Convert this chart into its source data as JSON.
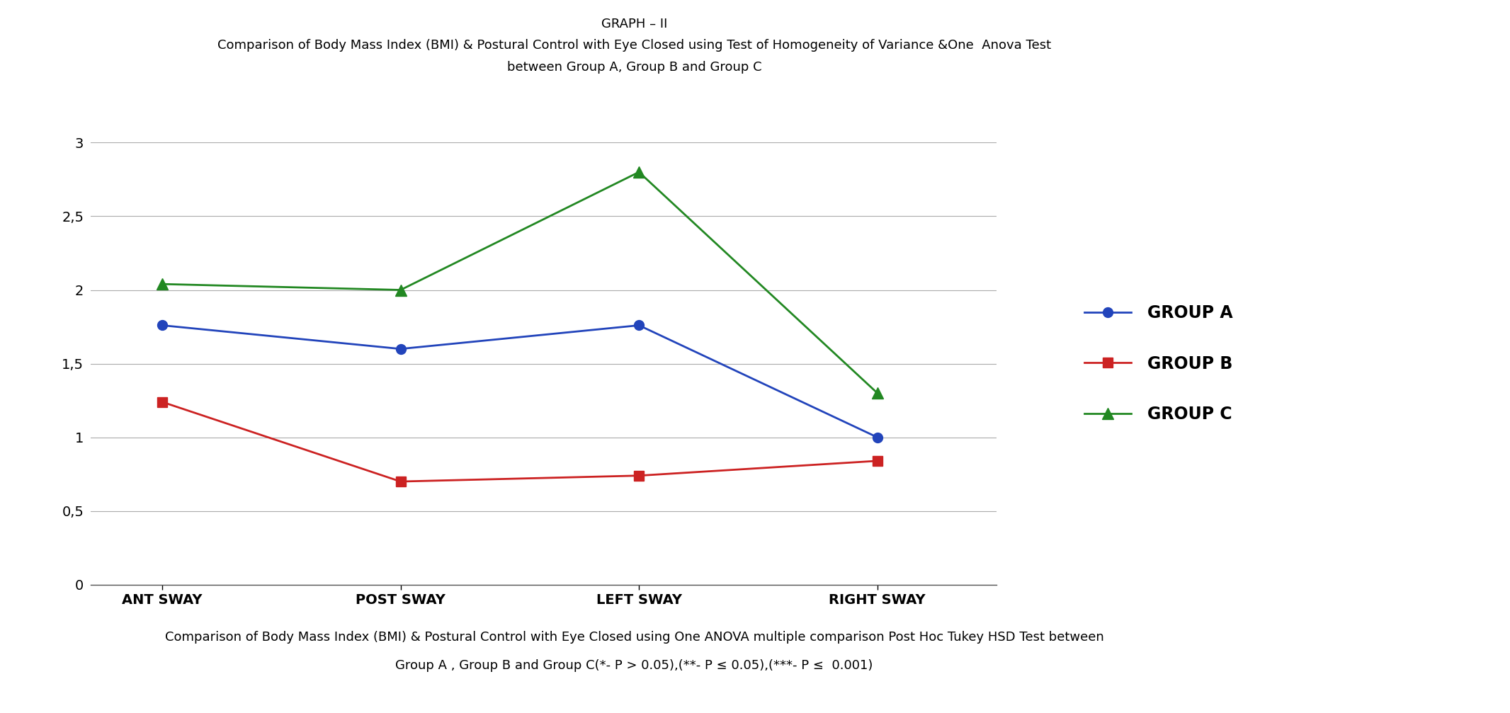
{
  "title_line1": "GRAPH – II",
  "title_line2": "Comparison of Body Mass Index (BMI) & Postural Control with Eye Closed using Test of Homogeneity of Variance &One  Anova Test",
  "title_line3": "between Group A, Group B and Group C",
  "categories": [
    "ANT SWAY",
    "POST SWAY",
    "LEFT SWAY",
    "RIGHT SWAY"
  ],
  "group_a": [
    1.76,
    1.6,
    1.76,
    1.0
  ],
  "group_b": [
    1.24,
    0.7,
    0.74,
    0.84
  ],
  "group_c": [
    2.04,
    2.0,
    2.8,
    1.3
  ],
  "color_a": "#2244bb",
  "color_b": "#cc2222",
  "color_c": "#228822",
  "ylim": [
    0,
    3.0
  ],
  "yticks": [
    0,
    0.5,
    1,
    1.5,
    2,
    2.5,
    3
  ],
  "ytick_labels": [
    "0",
    "0,5",
    "1",
    "1,5",
    "2",
    "2,5",
    "3"
  ],
  "legend_labels": [
    "GROUP A",
    "GROUP B",
    "GROUP C"
  ],
  "footer_line1": "Comparison of Body Mass Index (BMI) & Postural Control with Eye Closed using One ANOVA multiple comparison Post Hoc Tukey HSD Test between",
  "footer_line2": "Group A , Group B and Group C(*- P > 0.05),(**- P ≤ 0.05),(***- P ≤  0.001)",
  "background_color": "#ffffff",
  "marker_a": "o",
  "marker_b": "s",
  "marker_c": "^",
  "title1_fontsize": 13,
  "title2_fontsize": 13,
  "tick_fontsize": 14,
  "legend_fontsize": 17,
  "footer_fontsize": 13
}
